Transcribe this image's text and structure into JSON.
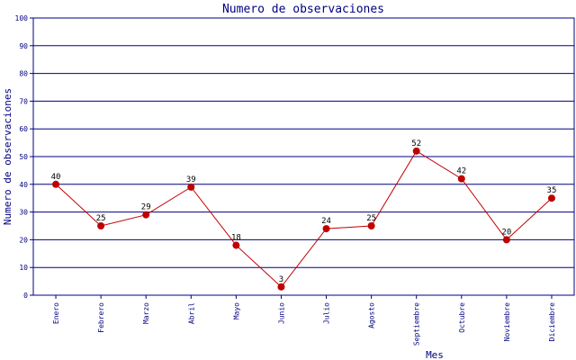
{
  "chart_data": {
    "type": "line",
    "title": "Numero de observaciones",
    "xlabel": "Mes",
    "ylabel": "Numero de observaciones",
    "ylim": [
      0,
      100
    ],
    "yticks": [
      0,
      10,
      20,
      30,
      40,
      50,
      60,
      70,
      80,
      90,
      100
    ],
    "grid": true,
    "categories": [
      "Enero",
      "Febrero",
      "Marzo",
      "Abril",
      "Mayo",
      "Junio",
      "Julio",
      "Agosto",
      "Septiembre",
      "Octubre",
      "Noviembre",
      "Diciembre"
    ],
    "series": [
      {
        "values": [
          40,
          25,
          29,
          39,
          18,
          3,
          24,
          25,
          52,
          42,
          20,
          35
        ],
        "color": "#c00000"
      }
    ],
    "colors": {
      "axis": "#000080",
      "series": "#c00000",
      "labels": "#000000"
    }
  }
}
